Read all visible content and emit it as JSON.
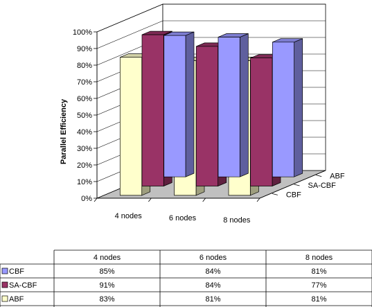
{
  "chart_data": {
    "type": "bar",
    "subtype": "3d-clustered-column",
    "title": "",
    "xlabel": "",
    "ylabel": "Parallel Efficiency",
    "categories": [
      "4 nodes",
      "6 nodes",
      "8 nodes"
    ],
    "series": [
      {
        "name": "CBF",
        "values": [
          85,
          84,
          81
        ],
        "labels": [
          "85%",
          "84%",
          "81%"
        ],
        "color": "#9999FF"
      },
      {
        "name": "SA-CBF",
        "values": [
          91,
          84,
          77
        ],
        "labels": [
          "91%",
          "84%",
          "77%"
        ],
        "color": "#993366"
      },
      {
        "name": "ABF",
        "values": [
          83,
          81,
          81
        ],
        "labels": [
          "83%",
          "81%",
          "81%"
        ],
        "color": "#FFFFCC"
      }
    ],
    "depth_labels": [
      "ABF",
      "SA-CBF",
      "CBF"
    ],
    "yticks": [
      "0%",
      "10%",
      "20%",
      "30%",
      "40%",
      "50%",
      "60%",
      "70%",
      "80%",
      "90%",
      "100%"
    ],
    "ylim": [
      0,
      100
    ],
    "grid": true,
    "legend": "data-table-below"
  }
}
